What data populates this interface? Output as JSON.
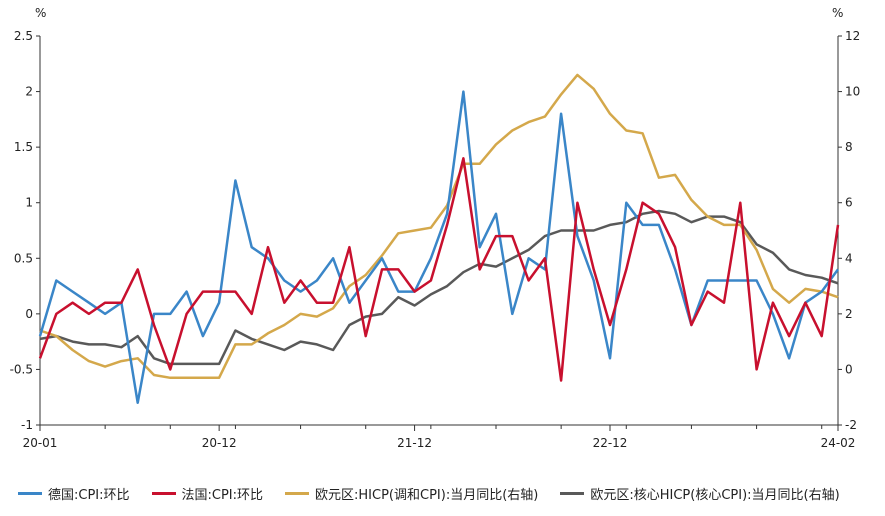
{
  "chart_data": {
    "type": "line",
    "left_unit": "%",
    "right_unit": "%",
    "left_axis": {
      "ylim": [
        -1,
        2.5
      ],
      "ticks": [
        "-1",
        "-0.5",
        "0",
        "0.5",
        "1",
        "1.5",
        "2",
        "2.5"
      ]
    },
    "right_axis": {
      "ylim": [
        -2,
        12
      ],
      "ticks": [
        "-2",
        "0",
        "2",
        "4",
        "6",
        "8",
        "10",
        "12"
      ]
    },
    "x_tick_labels": [
      "20-01",
      "20-12",
      "21-12",
      "22-12",
      "24-02"
    ],
    "x_tick_index": [
      0,
      11,
      23,
      35,
      49
    ],
    "legend_position": "bottom",
    "grid": false,
    "series": [
      {
        "name": "德国:CPI:环比",
        "axis": "left",
        "color": "#3a86c8",
        "values": [
          -0.2,
          0.3,
          0.2,
          0.1,
          0.0,
          0.1,
          -0.8,
          0.0,
          0.0,
          0.2,
          -0.2,
          0.1,
          1.2,
          0.6,
          0.5,
          0.3,
          0.2,
          0.3,
          0.5,
          0.1,
          0.3,
          0.5,
          0.2,
          0.2,
          0.5,
          0.9,
          2.0,
          0.6,
          0.9,
          0.0,
          0.5,
          0.4,
          1.8,
          0.7,
          0.3,
          -0.4,
          1.0,
          0.8,
          0.8,
          0.4,
          -0.1,
          0.3,
          0.3,
          0.3,
          0.3,
          0.0,
          -0.4,
          0.1,
          0.2,
          0.4
        ]
      },
      {
        "name": "法国:CPI:环比",
        "axis": "left",
        "color": "#c8102e",
        "values": [
          -0.4,
          0.0,
          0.1,
          0.0,
          0.1,
          0.1,
          0.4,
          -0.1,
          -0.5,
          0.0,
          0.2,
          0.2,
          0.2,
          0.0,
          0.6,
          0.1,
          0.3,
          0.1,
          0.1,
          0.6,
          -0.2,
          0.4,
          0.4,
          0.2,
          0.3,
          0.8,
          1.4,
          0.4,
          0.7,
          0.7,
          0.3,
          0.5,
          -0.6,
          1.0,
          0.4,
          -0.1,
          0.4,
          1.0,
          0.9,
          0.6,
          -0.1,
          0.2,
          0.1,
          1.0,
          -0.5,
          0.1,
          -0.2,
          0.1,
          -0.2,
          0.8
        ]
      },
      {
        "name": "欧元区:HICP(调和CPI):当月同比(右轴)",
        "axis": "right",
        "color": "#d4a84b",
        "values": [
          1.4,
          1.2,
          0.7,
          0.3,
          0.1,
          0.3,
          0.4,
          -0.2,
          -0.3,
          -0.3,
          -0.3,
          -0.3,
          0.9,
          0.9,
          1.3,
          1.6,
          2.0,
          1.9,
          2.2,
          3.0,
          3.4,
          4.1,
          4.9,
          5.0,
          5.1,
          5.9,
          7.4,
          7.4,
          8.1,
          8.6,
          8.9,
          9.1,
          9.9,
          10.6,
          10.1,
          9.2,
          8.6,
          8.5,
          6.9,
          7.0,
          6.1,
          5.5,
          5.2,
          5.2,
          4.3,
          2.9,
          2.4,
          2.9,
          2.8,
          2.6
        ]
      },
      {
        "name": "欧元区:核心HICP(核心CPI):当月同比(右轴)",
        "axis": "right",
        "color": "#595959",
        "values": [
          1.1,
          1.2,
          1.0,
          0.9,
          0.9,
          0.8,
          1.2,
          0.4,
          0.2,
          0.2,
          0.2,
          0.2,
          1.4,
          1.1,
          0.9,
          0.7,
          1.0,
          0.9,
          0.7,
          1.6,
          1.9,
          2.0,
          2.6,
          2.3,
          2.7,
          3.0,
          3.5,
          3.8,
          3.7,
          4.0,
          4.3,
          4.8,
          5.0,
          5.0,
          5.0,
          5.2,
          5.3,
          5.6,
          5.7,
          5.6,
          5.3,
          5.5,
          5.5,
          5.3,
          4.5,
          4.2,
          3.6,
          3.4,
          3.3,
          3.1
        ]
      }
    ]
  }
}
